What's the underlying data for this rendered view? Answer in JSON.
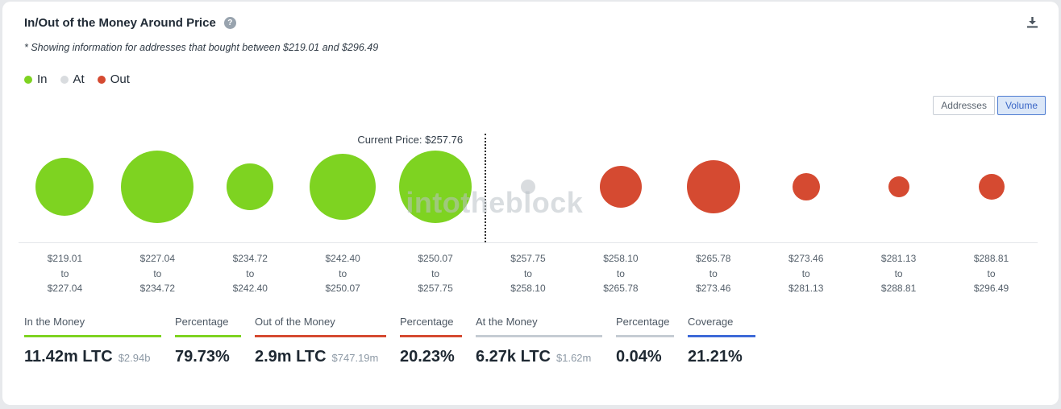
{
  "header": {
    "title": "In/Out of the Money Around Price",
    "help_glyph": "?"
  },
  "note": "* Showing information for addresses that bought between $219.01 and $296.49",
  "legend": {
    "items": [
      {
        "label": "In",
        "color": "#7ed321"
      },
      {
        "label": "At",
        "color": "#d9dcdf"
      },
      {
        "label": "Out",
        "color": "#d54a31"
      }
    ]
  },
  "view_toggle": {
    "options": [
      {
        "label": "Addresses",
        "selected": false
      },
      {
        "label": "Volume",
        "selected": true
      }
    ]
  },
  "chart_data": {
    "type": "scatter",
    "subtype": "bubble-row",
    "title": "In/Out of the Money Around Price",
    "size_encoding": "bubble diameter encodes LTC volume held per price range",
    "current_price": 257.76,
    "current_price_label": "Current Price: $257.76",
    "watermark": "intotheblock",
    "range_separator": "to",
    "colors": {
      "in": "#7ed321",
      "at": "#d9dcdf",
      "out": "#d54a31"
    },
    "bubbles": [
      {
        "from": "$219.01",
        "to": "$227.04",
        "status": "in",
        "diameter": 72
      },
      {
        "from": "$227.04",
        "to": "$234.72",
        "status": "in",
        "diameter": 90
      },
      {
        "from": "$234.72",
        "to": "$242.40",
        "status": "in",
        "diameter": 58
      },
      {
        "from": "$242.40",
        "to": "$250.07",
        "status": "in",
        "diameter": 82
      },
      {
        "from": "$250.07",
        "to": "$257.75",
        "status": "in",
        "diameter": 90
      },
      {
        "from": "$257.75",
        "to": "$258.10",
        "status": "at",
        "diameter": 18
      },
      {
        "from": "$258.10",
        "to": "$265.78",
        "status": "out",
        "diameter": 52
      },
      {
        "from": "$265.78",
        "to": "$273.46",
        "status": "out",
        "diameter": 66
      },
      {
        "from": "$273.46",
        "to": "$281.13",
        "status": "out",
        "diameter": 34
      },
      {
        "from": "$281.13",
        "to": "$288.81",
        "status": "out",
        "diameter": 26
      },
      {
        "from": "$288.81",
        "to": "$296.49",
        "status": "out",
        "diameter": 32
      }
    ],
    "totals": {
      "in_the_money": {
        "ltc": "11.42m LTC",
        "usd": "$2.94b",
        "percentage": "79.73%"
      },
      "out_of_the_money": {
        "ltc": "2.9m LTC",
        "usd": "$747.19m",
        "percentage": "20.23%"
      },
      "at_the_money": {
        "ltc": "6.27k LTC",
        "usd": "$1.62m",
        "percentage": "0.04%"
      },
      "coverage": "21.21%"
    }
  },
  "stats": [
    {
      "label": "In the Money",
      "value": "11.42m LTC",
      "sub": "$2.94b",
      "accent": "#7ed321"
    },
    {
      "label": "Percentage",
      "value": "79.73%",
      "sub": "",
      "accent": "#7ed321"
    },
    {
      "label": "Out of the Money",
      "value": "2.9m LTC",
      "sub": "$747.19m",
      "accent": "#d54a31"
    },
    {
      "label": "Percentage",
      "value": "20.23%",
      "sub": "",
      "accent": "#d54a31"
    },
    {
      "label": "At the Money",
      "value": "6.27k LTC",
      "sub": "$1.62m",
      "accent": "#c5ccd3"
    },
    {
      "label": "Percentage",
      "value": "0.04%",
      "sub": "",
      "accent": "#c5ccd3"
    },
    {
      "label": "Coverage",
      "value": "21.21%",
      "sub": "",
      "accent": "#3e6ad8"
    }
  ]
}
